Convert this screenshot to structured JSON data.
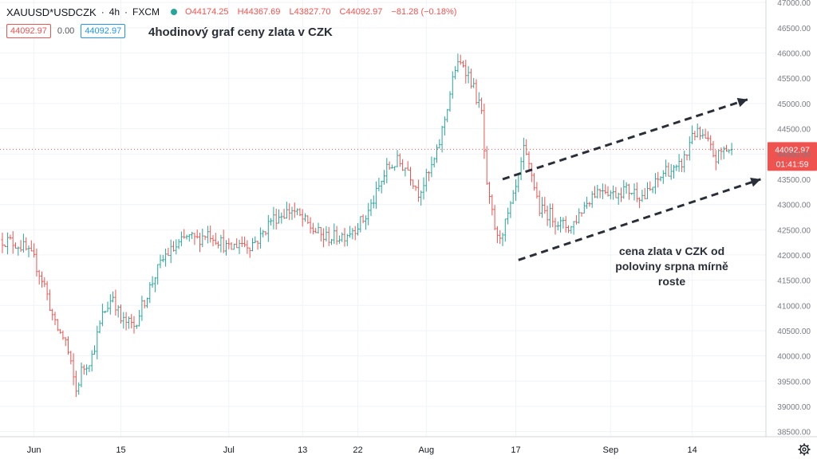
{
  "header": {
    "symbol": "XAUUSD*USDCZK",
    "interval": "4h",
    "source": "FXCM",
    "open_label": "O",
    "open": "44174.25",
    "high_label": "H",
    "high": "44367.69",
    "low_label": "L",
    "low": "43827.70",
    "close_label": "C",
    "close": "44092.97",
    "change": "−81.28 (−0.18%)",
    "status_color": "#26a69a"
  },
  "price_pills": {
    "bid": "44092.97",
    "spread": "0.00",
    "ask": "44092.97"
  },
  "annotations": {
    "title": "4hodinový graf ceny zlata v CZK",
    "note": "cena zlata v CZK od poloviny srpna mírně roste"
  },
  "last_price": {
    "value": "44092.97",
    "countdown": "01:41:59",
    "color": "#ef5350"
  },
  "colors": {
    "up": "#26a69a",
    "down": "#ef5350",
    "grid": "#f0f3fa",
    "axis_text": "#787b86"
  },
  "settings_icon": "gear-icon",
  "chart_data": {
    "type": "ohlc-bar",
    "ylim": [
      38400,
      47050
    ],
    "y_ticks": [
      38500,
      39000,
      39500,
      40000,
      40500,
      41000,
      41500,
      42000,
      42500,
      43000,
      43500,
      44000,
      44500,
      45000,
      45500,
      46000,
      46500,
      47000
    ],
    "y_tick_labels": [
      "38500.00",
      "39000.00",
      "39500.00",
      "40000.00",
      "40500.00",
      "41000.00",
      "41500.00",
      "42000.00",
      "42500.00",
      "43000.00",
      "43500.00",
      "44000.00",
      "44500.00",
      "45000.00",
      "45500.00",
      "46000.00",
      "46500.00",
      "47000.00"
    ],
    "x_tick_labels": [
      "Jun",
      "15",
      "Jul",
      "13",
      "22",
      "Aug",
      "17",
      "Sep",
      "14"
    ],
    "x_tick_bar_index": [
      12,
      45,
      86,
      114,
      135,
      161,
      195,
      231,
      262
    ],
    "price_path": [
      [
        0,
        42300
      ],
      [
        4,
        42250
      ],
      [
        8,
        42150
      ],
      [
        12,
        41900
      ],
      [
        16,
        41400
      ],
      [
        20,
        40600
      ],
      [
        24,
        40300
      ],
      [
        28,
        39300
      ],
      [
        30,
        39700
      ],
      [
        34,
        40000
      ],
      [
        38,
        40800
      ],
      [
        42,
        41200
      ],
      [
        45,
        40700
      ],
      [
        50,
        40600
      ],
      [
        54,
        41100
      ],
      [
        58,
        41600
      ],
      [
        62,
        42000
      ],
      [
        66,
        42150
      ],
      [
        70,
        42350
      ],
      [
        74,
        42300
      ],
      [
        78,
        42450
      ],
      [
        82,
        42300
      ],
      [
        86,
        42100
      ],
      [
        90,
        42250
      ],
      [
        94,
        42200
      ],
      [
        98,
        42350
      ],
      [
        102,
        42700
      ],
      [
        106,
        42800
      ],
      [
        110,
        42900
      ],
      [
        114,
        42700
      ],
      [
        118,
        42500
      ],
      [
        122,
        42350
      ],
      [
        126,
        42350
      ],
      [
        130,
        42400
      ],
      [
        134,
        42550
      ],
      [
        138,
        42750
      ],
      [
        142,
        43200
      ],
      [
        146,
        43700
      ],
      [
        150,
        43850
      ],
      [
        154,
        43700
      ],
      [
        158,
        43250
      ],
      [
        162,
        43600
      ],
      [
        165,
        44000
      ],
      [
        168,
        44700
      ],
      [
        172,
        45700
      ],
      [
        175,
        45800
      ],
      [
        178,
        45450
      ],
      [
        182,
        44800
      ],
      [
        184,
        43300
      ],
      [
        186,
        42800
      ],
      [
        188,
        42300
      ],
      [
        191,
        42600
      ],
      [
        194,
        43100
      ],
      [
        196,
        43500
      ],
      [
        198,
        44050
      ],
      [
        201,
        43600
      ],
      [
        204,
        42900
      ],
      [
        208,
        42800
      ],
      [
        212,
        42600
      ],
      [
        216,
        42550
      ],
      [
        220,
        42900
      ],
      [
        224,
        43200
      ],
      [
        228,
        43350
      ],
      [
        232,
        43200
      ],
      [
        236,
        43300
      ],
      [
        240,
        43250
      ],
      [
        244,
        43150
      ],
      [
        248,
        43400
      ],
      [
        252,
        43700
      ],
      [
        256,
        43650
      ],
      [
        260,
        44000
      ],
      [
        262,
        44450
      ],
      [
        265,
        44350
      ],
      [
        268,
        44200
      ],
      [
        271,
        43900
      ],
      [
        274,
        44100
      ],
      [
        277,
        44092.97
      ]
    ],
    "trend_lines": [
      {
        "from_bar": 190,
        "from_value": 43500,
        "to_bar": 283,
        "to_value": 45080,
        "style": "dashed",
        "arrow": true
      },
      {
        "from_bar": 196,
        "from_value": 41900,
        "to_bar": 288,
        "to_value": 43500,
        "style": "dashed",
        "arrow": true
      }
    ]
  }
}
